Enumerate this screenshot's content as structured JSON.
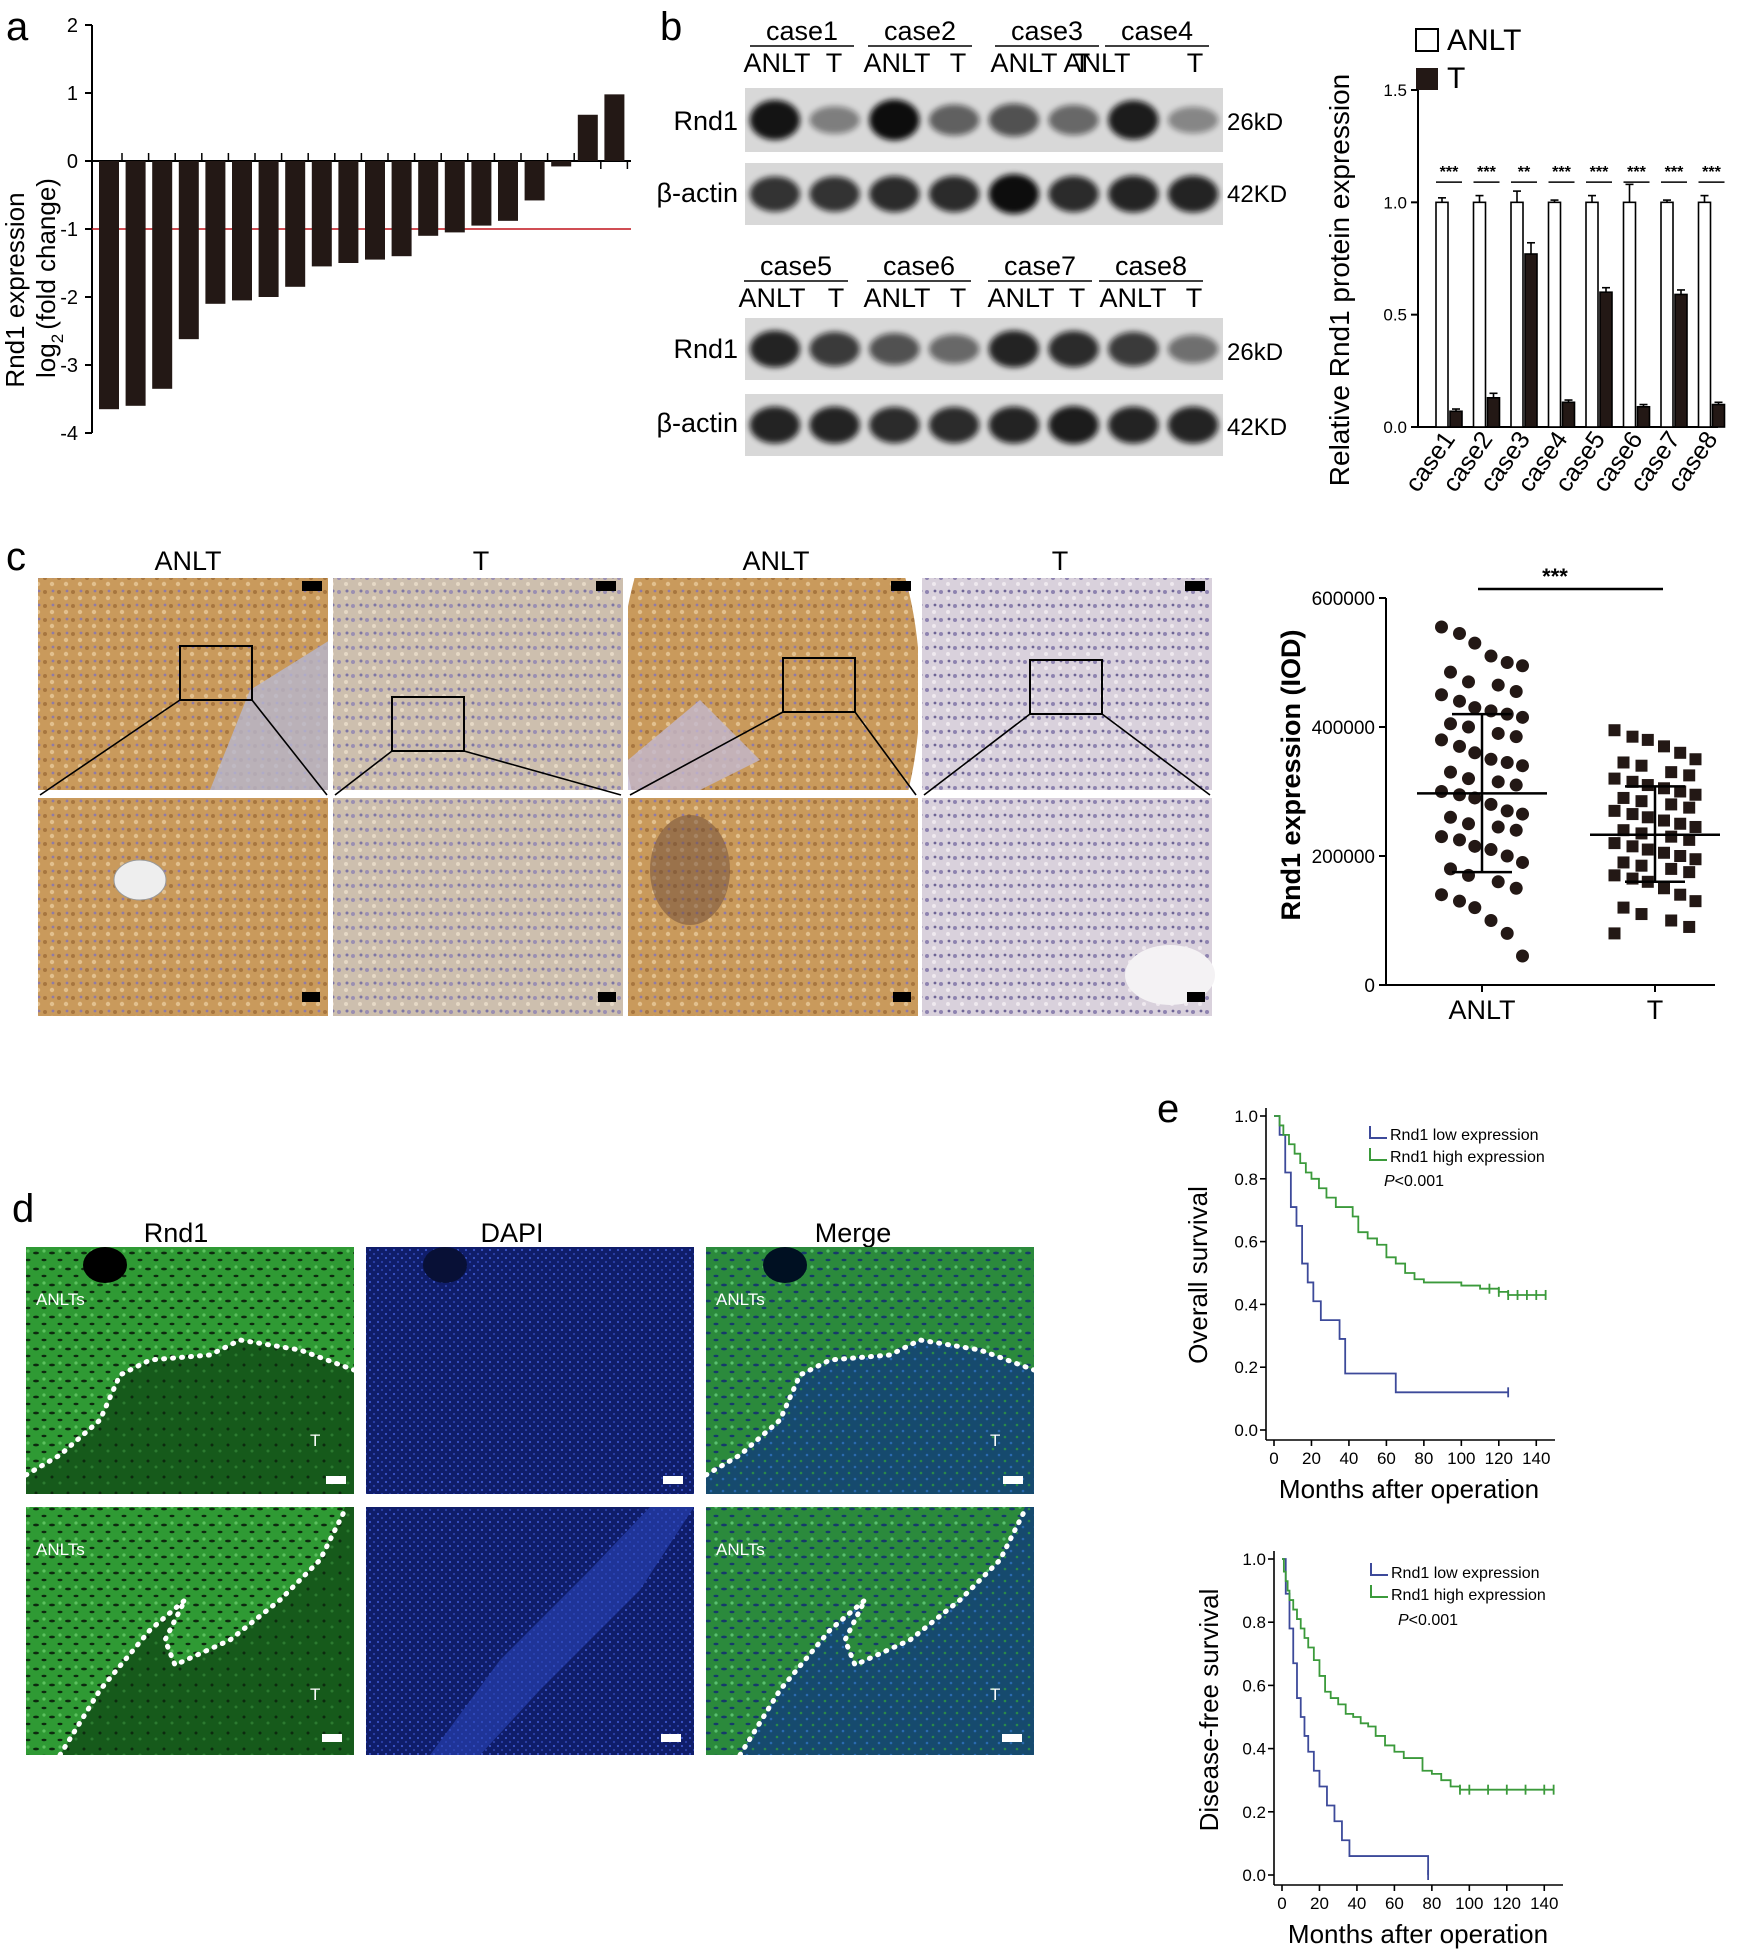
{
  "panel_letters": {
    "a": "a",
    "b": "b",
    "c": "c",
    "d": "d",
    "e": "e"
  },
  "colors": {
    "bar": "#231815",
    "cutoff": "#c0141b",
    "low": "#3d4a9a",
    "high": "#3b9a3b",
    "ihc": "#c9a06a",
    "if_green": "#2b8a2b",
    "if_blue": "#1a2a8a"
  },
  "panel_a": {
    "type": "bar",
    "ylabel_line1": "Rnd1 expression",
    "ylabel_line2": "log",
    "ylabel_sub": "2",
    "ylabel_end": "(fold change)",
    "yticks": [
      "2",
      "1",
      "0",
      "-1",
      "-2",
      "-3",
      "-4"
    ],
    "ylim": [
      -4,
      2
    ],
    "cutoff": -1,
    "values": [
      -3.65,
      -3.6,
      -3.35,
      -2.62,
      -2.1,
      -2.05,
      -2.0,
      -1.85,
      -1.55,
      -1.5,
      -1.45,
      -1.4,
      -1.1,
      -1.05,
      -0.95,
      -0.88,
      -0.58,
      -0.08,
      0.68,
      0.98
    ]
  },
  "panel_b": {
    "row1_cases": [
      "case1",
      "case2",
      "case3",
      "case4"
    ],
    "row2_cases": [
      "case5",
      "case6",
      "case7",
      "case8"
    ],
    "lane_anlt": "ANLT",
    "lane_t": "T",
    "band_rnd1": "Rnd1",
    "band_actin": "β-actin",
    "kd_rnd1": "26kD",
    "kd_actin": "42KD",
    "blot_row1_rnd1": [
      0.95,
      0.25,
      1.0,
      0.45,
      0.55,
      0.4,
      0.9,
      0.2
    ],
    "blot_row1_actin": [
      0.75,
      0.75,
      0.8,
      0.8,
      1.0,
      0.8,
      0.85,
      0.85
    ],
    "blot_row2_rnd1": [
      0.85,
      0.7,
      0.55,
      0.4,
      0.85,
      0.8,
      0.7,
      0.35
    ],
    "blot_row2_actin": [
      0.85,
      0.85,
      0.8,
      0.8,
      0.85,
      0.9,
      0.85,
      0.85
    ]
  },
  "panel_b_chart": {
    "type": "bar",
    "ylabel": "Relative Rnd1 protein expression",
    "legend": [
      "ANLT",
      "T"
    ],
    "yticks": [
      "0.0",
      "0.5",
      "1.0",
      "1.5"
    ],
    "ylim": [
      0,
      1.5
    ],
    "categories": [
      "case1",
      "case2",
      "case3",
      "case4",
      "case5",
      "case6",
      "case7",
      "case8"
    ],
    "series": [
      {
        "name": "ANLT",
        "values": [
          1.0,
          1.0,
          1.0,
          1.0,
          1.0,
          1.0,
          1.0,
          1.0
        ],
        "errors": [
          0.02,
          0.03,
          0.05,
          0.01,
          0.03,
          0.08,
          0.01,
          0.03
        ]
      },
      {
        "name": "T",
        "values": [
          0.07,
          0.13,
          0.77,
          0.11,
          0.6,
          0.09,
          0.59,
          0.1
        ],
        "errors": [
          0.01,
          0.02,
          0.05,
          0.01,
          0.02,
          0.01,
          0.02,
          0.01
        ]
      }
    ],
    "significance": [
      "***",
      "***",
      "**",
      "***",
      "***",
      "***",
      "***",
      "***"
    ]
  },
  "panel_c": {
    "labels": [
      "ANLT",
      "T",
      "ANLT",
      "T"
    ]
  },
  "panel_c_chart": {
    "type": "scatter",
    "ylabel": "Rnd1 expression (IOD)",
    "yticks": [
      "0",
      "200000",
      "400000",
      "600000"
    ],
    "ylim": [
      0,
      600000
    ],
    "categories": [
      "ANLT",
      "T"
    ],
    "significance": "***",
    "anlt": {
      "mean": 297000,
      "sd_low": 175000,
      "sd_high": 420000,
      "values": [
        555000,
        545000,
        530000,
        510000,
        500000,
        495000,
        485000,
        470000,
        465000,
        455000,
        450000,
        440000,
        430000,
        425000,
        420000,
        415000,
        405000,
        400000,
        390000,
        385000,
        380000,
        370000,
        360000,
        350000,
        345000,
        340000,
        330000,
        320000,
        315000,
        310000,
        300000,
        295000,
        290000,
        280000,
        270000,
        265000,
        260000,
        250000,
        245000,
        240000,
        230000,
        225000,
        215000,
        210000,
        200000,
        190000,
        180000,
        170000,
        160000,
        150000,
        140000,
        130000,
        120000,
        100000,
        80000,
        45000
      ]
    },
    "t": {
      "mean": 233000,
      "sd_low": 160000,
      "sd_high": 308000,
      "values": [
        395000,
        385000,
        380000,
        370000,
        360000,
        350000,
        345000,
        340000,
        330000,
        325000,
        320000,
        315000,
        310000,
        305000,
        300000,
        295000,
        290000,
        285000,
        280000,
        275000,
        270000,
        265000,
        260000,
        255000,
        250000,
        245000,
        240000,
        235000,
        230000,
        225000,
        220000,
        215000,
        210000,
        205000,
        200000,
        195000,
        190000,
        185000,
        180000,
        175000,
        170000,
        165000,
        160000,
        150000,
        140000,
        130000,
        120000,
        110000,
        100000,
        90000,
        80000
      ]
    }
  },
  "panel_d": {
    "titles": [
      "Rnd1",
      "DAPI",
      "Merge"
    ],
    "anlt_label": "ANLTs",
    "t_label": "T"
  },
  "panel_e_os": {
    "type": "line",
    "ylabel": "Overall survival",
    "xlabel": "Months after operation",
    "xticks": [
      "0",
      "20",
      "40",
      "60",
      "80",
      "100",
      "120",
      "140"
    ],
    "yticks": [
      "0.0",
      "0.2",
      "0.4",
      "0.6",
      "0.8",
      "1.0"
    ],
    "xlim": [
      0,
      150
    ],
    "ylim": [
      0,
      1
    ],
    "legend": [
      "Rnd1 low expression",
      "Rnd1 high expression"
    ],
    "p_italic": "P",
    "p_text": "<0.001",
    "low": {
      "x": [
        0,
        3,
        6,
        9,
        12,
        15,
        18,
        21,
        25,
        30,
        35,
        38,
        40,
        65,
        125
      ],
      "y": [
        1.0,
        0.94,
        0.82,
        0.71,
        0.65,
        0.53,
        0.47,
        0.41,
        0.35,
        0.35,
        0.29,
        0.18,
        0.18,
        0.12,
        0.12
      ]
    },
    "high": {
      "x": [
        0,
        3,
        5,
        8,
        11,
        14,
        17,
        20,
        24,
        28,
        33,
        38,
        42,
        45,
        50,
        55,
        60,
        65,
        70,
        75,
        80,
        85,
        90,
        95,
        100,
        105,
        110,
        115,
        120,
        125,
        130,
        135,
        140,
        145
      ],
      "y": [
        1.0,
        0.97,
        0.94,
        0.91,
        0.88,
        0.85,
        0.82,
        0.8,
        0.77,
        0.74,
        0.71,
        0.71,
        0.68,
        0.63,
        0.61,
        0.59,
        0.55,
        0.53,
        0.5,
        0.48,
        0.47,
        0.47,
        0.47,
        0.47,
        0.46,
        0.46,
        0.45,
        0.45,
        0.44,
        0.43,
        0.43,
        0.43,
        0.43,
        0.43
      ]
    }
  },
  "panel_e_dfs": {
    "type": "line",
    "ylabel": "Disease-free survival",
    "xlabel": "Months after operation",
    "xticks": [
      "0",
      "20",
      "40",
      "60",
      "80",
      "100",
      "120",
      "140"
    ],
    "yticks": [
      "0.0",
      "0.2",
      "0.4",
      "0.6",
      "0.8",
      "1.0"
    ],
    "xlim": [
      0,
      150
    ],
    "ylim": [
      0,
      1
    ],
    "legend": [
      "Rnd1 low expression",
      "Rnd1 high expression"
    ],
    "p_italic": "P",
    "p_text": "<0.001",
    "low": {
      "x": [
        0,
        2,
        4,
        6,
        8,
        10,
        12,
        14,
        17,
        20,
        24,
        28,
        32,
        36,
        40,
        60,
        78
      ],
      "y": [
        1.0,
        0.89,
        0.78,
        0.67,
        0.56,
        0.5,
        0.44,
        0.39,
        0.33,
        0.28,
        0.22,
        0.17,
        0.11,
        0.06,
        0.06,
        0.06,
        0.0
      ]
    },
    "high": {
      "x": [
        0,
        1,
        2,
        3,
        4,
        6,
        8,
        10,
        12,
        14,
        17,
        20,
        23,
        26,
        30,
        34,
        38,
        42,
        46,
        50,
        55,
        60,
        65,
        70,
        75,
        80,
        85,
        90,
        95,
        100,
        110,
        120,
        130,
        140,
        145
      ],
      "y": [
        1.0,
        0.96,
        0.93,
        0.9,
        0.87,
        0.84,
        0.81,
        0.78,
        0.75,
        0.72,
        0.68,
        0.63,
        0.58,
        0.56,
        0.54,
        0.51,
        0.5,
        0.48,
        0.47,
        0.44,
        0.41,
        0.39,
        0.37,
        0.37,
        0.33,
        0.32,
        0.3,
        0.28,
        0.27,
        0.27,
        0.27,
        0.27,
        0.27,
        0.27,
        0.27
      ]
    }
  }
}
